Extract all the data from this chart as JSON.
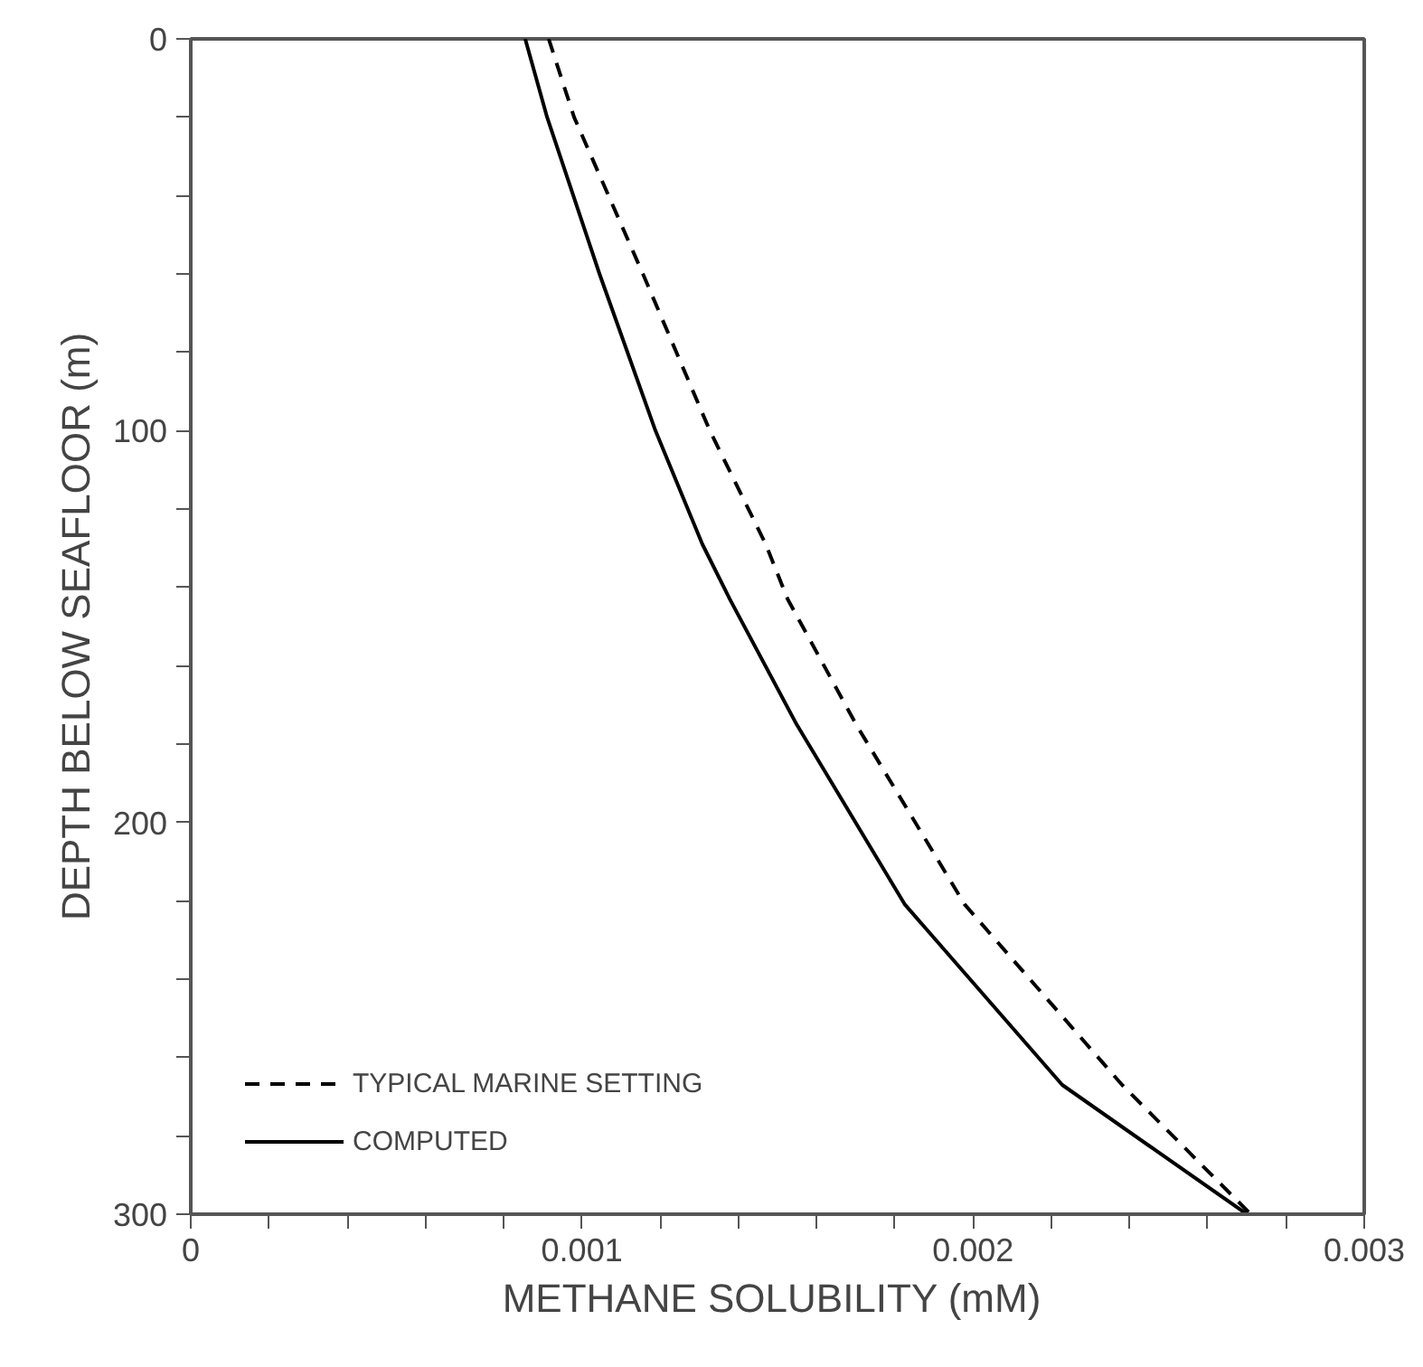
{
  "chart_data": {
    "type": "line",
    "xlabel": "METHANE  SOLUBILITY (mM)",
    "ylabel": "DEPTH BELOW SEAFLOOR (m)",
    "xlim": [
      0,
      0.003
    ],
    "ylim": [
      300,
      0
    ],
    "xticks": [
      0,
      {
        "value": 0.0002,
        "label": null
      },
      {
        "value": 0.0004,
        "label": null
      },
      {
        "value": 0.0006,
        "label": null
      },
      {
        "value": 0.0008,
        "label": null
      },
      0.001,
      {
        "value": 0.0012,
        "label": null
      },
      {
        "value": 0.0014,
        "label": null
      },
      {
        "value": 0.0016,
        "label": null
      },
      {
        "value": 0.0018,
        "label": null
      },
      0.002,
      {
        "value": 0.0022,
        "label": null
      },
      {
        "value": 0.0024,
        "label": null
      },
      {
        "value": 0.0026,
        "label": null
      },
      {
        "value": 0.0028,
        "label": null
      },
      0.003
    ],
    "yticks": [
      0,
      {
        "value": 20,
        "label": null
      },
      {
        "value": 40,
        "label": null
      },
      {
        "value": 60,
        "label": null
      },
      {
        "value": 80,
        "label": null
      },
      100,
      {
        "value": 120,
        "label": null
      },
      {
        "value": 140,
        "label": null
      },
      {
        "value": 160,
        "label": null
      },
      {
        "value": 180,
        "label": null
      },
      200,
      {
        "value": 220,
        "label": null
      },
      {
        "value": 240,
        "label": null
      },
      {
        "value": 260,
        "label": null
      },
      {
        "value": 280,
        "label": null
      },
      300
    ],
    "grid": false,
    "legend": "bottom left",
    "marker": "none",
    "series": [
      {
        "name": "TYPICAL MARINE SETTING",
        "color": "#000000",
        "line_style": "dashed",
        "x": [
          0.000915,
          0.00098,
          0.001156,
          0.001327,
          0.00147,
          0.001526,
          0.001701,
          0.001979,
          0.002381,
          0.00271
        ],
        "values": [
          0,
          20,
          60,
          100,
          129,
          143,
          175,
          221,
          267,
          300
        ]
      },
      {
        "name": "COMPUTED",
        "color": "#000000",
        "line_style": "solid",
        "x": [
          0.000855,
          0.000911,
          0.001045,
          0.001188,
          0.001308,
          0.001378,
          0.001549,
          0.001826,
          0.002228,
          0.0027
        ],
        "values": [
          0,
          20,
          60,
          100,
          129,
          143,
          175,
          221,
          267,
          300
        ]
      }
    ]
  }
}
